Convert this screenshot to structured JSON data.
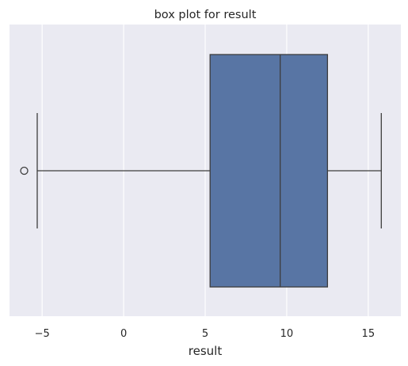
{
  "chart_data": {
    "type": "box",
    "title": "box plot for result",
    "xlabel": "result",
    "ylabel": "",
    "xlim": [
      -7,
      17
    ],
    "ticks": [
      -5,
      0,
      5,
      10,
      15
    ],
    "tick_labels": [
      "−5",
      "0",
      "5",
      "10",
      "15"
    ],
    "grid": true,
    "orientation": "horizontal",
    "box": {
      "whisker_low": -5.3,
      "q1": 5.3,
      "median": 9.6,
      "q3": 12.5,
      "whisker_high": 15.8,
      "outliers": [
        -6.1
      ]
    },
    "colors": {
      "plot_background": "#eaeaf2",
      "grid": "#ffffff",
      "box_fill": "#5875a4",
      "line": "#3d3d3d"
    }
  }
}
